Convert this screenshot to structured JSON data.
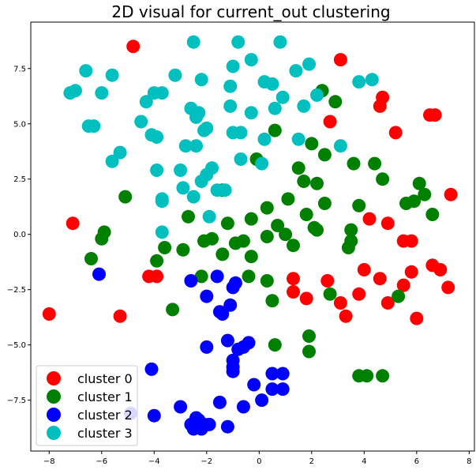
{
  "chart_data": {
    "type": "scatter",
    "title": "2D visual for current_out clustering",
    "xlabel": "",
    "ylabel": "",
    "xlim": [
      -8.7,
      8.2
    ],
    "ylim": [
      -9.8,
      9.6
    ],
    "xticks": [
      -8,
      -6,
      -4,
      -2,
      0,
      2,
      4,
      6,
      8
    ],
    "yticks": [
      -7.5,
      -5.0,
      -2.5,
      0.0,
      2.5,
      5.0,
      7.5
    ],
    "xtick_labels": [
      "−8",
      "−6",
      "−4",
      "−2",
      "0",
      "2",
      "4",
      "6",
      "8"
    ],
    "ytick_labels": [
      "−7.5",
      "−5.0",
      "−2.5",
      "0.0",
      "2.5",
      "5.0",
      "7.5"
    ],
    "grid": false,
    "legend_position": "lower-left",
    "series": [
      {
        "name": "cluster 0",
        "color": "#ff0000",
        "points": [
          [
            -4.8,
            8.5
          ],
          [
            3.1,
            7.9
          ],
          [
            4.7,
            6.2
          ],
          [
            4.6,
            5.8
          ],
          [
            2.7,
            5.1
          ],
          [
            5.2,
            4.6
          ],
          [
            6.5,
            5.4
          ],
          [
            6.7,
            5.4
          ],
          [
            7.3,
            1.8
          ],
          [
            -7.1,
            0.5
          ],
          [
            4.2,
            0.7
          ],
          [
            4.9,
            0.5
          ],
          [
            5.5,
            -0.3
          ],
          [
            5.8,
            -0.3
          ],
          [
            -4.2,
            -1.9
          ],
          [
            -3.9,
            -1.9
          ],
          [
            4.0,
            -1.6
          ],
          [
            4.6,
            -2.0
          ],
          [
            5.8,
            -1.7
          ],
          [
            6.6,
            -1.4
          ],
          [
            6.9,
            -1.6
          ],
          [
            2.6,
            -2.1
          ],
          [
            1.3,
            -2.0
          ],
          [
            5.5,
            -2.3
          ],
          [
            7.2,
            -2.4
          ],
          [
            1.3,
            -2.6
          ],
          [
            1.8,
            -2.9
          ],
          [
            3.8,
            -2.7
          ],
          [
            3.1,
            -3.1
          ],
          [
            4.9,
            -3.1
          ],
          [
            3.3,
            -3.7
          ],
          [
            6.0,
            -3.8
          ],
          [
            -8.0,
            -3.6
          ],
          [
            -5.3,
            -3.7
          ]
        ]
      },
      {
        "name": "cluster 1",
        "color": "#008000",
        "points": [
          [
            2.4,
            6.5
          ],
          [
            2.9,
            6.0
          ],
          [
            0.6,
            4.7
          ],
          [
            2.0,
            4.1
          ],
          [
            2.5,
            3.6
          ],
          [
            -0.1,
            3.4
          ],
          [
            3.6,
            3.2
          ],
          [
            4.4,
            3.2
          ],
          [
            1.5,
            3.0
          ],
          [
            4.7,
            2.5
          ],
          [
            1.7,
            2.4
          ],
          [
            2.2,
            2.3
          ],
          [
            -5.1,
            1.7
          ],
          [
            -1.4,
            2.0
          ],
          [
            1.1,
            1.6
          ],
          [
            2.5,
            1.4
          ],
          [
            3.8,
            1.3
          ],
          [
            5.6,
            1.4
          ],
          [
            5.9,
            1.5
          ],
          [
            6.3,
            1.8
          ],
          [
            6.1,
            2.3
          ],
          [
            0.3,
            1.2
          ],
          [
            6.6,
            0.9
          ],
          [
            -2.7,
            0.8
          ],
          [
            -1.2,
            0.5
          ],
          [
            -0.3,
            0.7
          ],
          [
            1.8,
            0.9
          ],
          [
            0.7,
            0.4
          ],
          [
            2.1,
            0.3
          ],
          [
            2.2,
            0.2
          ],
          [
            3.5,
            0.2
          ],
          [
            -5.9,
            0.1
          ],
          [
            -6.0,
            -0.2
          ],
          [
            -2.1,
            -0.3
          ],
          [
            -1.8,
            -0.2
          ],
          [
            -0.9,
            -0.4
          ],
          [
            -0.6,
            -0.3
          ],
          [
            0.3,
            -0.1
          ],
          [
            1.0,
            0.0
          ],
          [
            3.5,
            -0.3
          ],
          [
            -3.6,
            -0.6
          ],
          [
            -2.9,
            -0.7
          ],
          [
            1.3,
            -0.5
          ],
          [
            3.4,
            -0.6
          ],
          [
            -6.4,
            -1.1
          ],
          [
            -3.9,
            -1.2
          ],
          [
            -1.4,
            -0.9
          ],
          [
            -0.3,
            -1.0
          ],
          [
            -2.2,
            -1.9
          ],
          [
            -0.4,
            -1.9
          ],
          [
            0.3,
            -2.1
          ],
          [
            2.7,
            -2.7
          ],
          [
            5.3,
            -2.8
          ],
          [
            0.5,
            -3.0
          ],
          [
            -3.3,
            -3.4
          ],
          [
            1.9,
            -4.6
          ],
          [
            0.6,
            -5.0
          ],
          [
            1.9,
            -5.3
          ],
          [
            3.8,
            -6.4
          ],
          [
            4.1,
            -6.4
          ],
          [
            4.7,
            -6.4
          ]
        ]
      },
      {
        "name": "cluster 2",
        "color": "#0000ff",
        "points": [
          [
            -6.1,
            -1.8
          ],
          [
            -1.6,
            -1.9
          ],
          [
            -2.6,
            -2.1
          ],
          [
            -0.9,
            -2.2
          ],
          [
            -1.0,
            -2.4
          ],
          [
            -2.0,
            -2.8
          ],
          [
            -1.1,
            -3.2
          ],
          [
            -1.5,
            -3.5
          ],
          [
            -1.4,
            -3.6
          ],
          [
            -1.2,
            -4.8
          ],
          [
            -2.0,
            -5.1
          ],
          [
            -0.8,
            -5.2
          ],
          [
            -0.6,
            -5.1
          ],
          [
            -0.4,
            -4.9
          ],
          [
            -1.0,
            -5.7
          ],
          [
            -1.0,
            -6.0
          ],
          [
            -1.0,
            -6.2
          ],
          [
            0.5,
            -6.3
          ],
          [
            0.9,
            -6.3
          ],
          [
            -4.1,
            -6.1
          ],
          [
            -0.2,
            -6.8
          ],
          [
            0.5,
            -7.0
          ],
          [
            0.9,
            -7.0
          ],
          [
            -0.6,
            -7.8
          ],
          [
            0.1,
            -7.5
          ],
          [
            -1.5,
            -7.6
          ],
          [
            -3.0,
            -7.8
          ],
          [
            -4.9,
            -8.1
          ],
          [
            -4.0,
            -8.2
          ],
          [
            -2.4,
            -8.3
          ],
          [
            -2.6,
            -8.6
          ],
          [
            -2.3,
            -8.4
          ],
          [
            -2.1,
            -8.6
          ],
          [
            -1.9,
            -8.6
          ],
          [
            -2.5,
            -8.8
          ],
          [
            -2.2,
            -8.8
          ],
          [
            -1.2,
            -8.7
          ]
        ]
      },
      {
        "name": "cluster 3",
        "color": "#00bfbf",
        "points": [
          [
            -2.5,
            8.7
          ],
          [
            -0.8,
            8.7
          ],
          [
            0.8,
            8.7
          ],
          [
            -0.3,
            7.9
          ],
          [
            -1.0,
            7.6
          ],
          [
            -6.6,
            7.4
          ],
          [
            -5.6,
            7.2
          ],
          [
            -3.2,
            7.2
          ],
          [
            -2.2,
            7.0
          ],
          [
            1.4,
            7.4
          ],
          [
            1.9,
            7.7
          ],
          [
            0.2,
            6.9
          ],
          [
            0.5,
            6.8
          ],
          [
            3.8,
            6.9
          ],
          [
            4.3,
            7.0
          ],
          [
            -7.2,
            6.4
          ],
          [
            -7.0,
            6.5
          ],
          [
            -6.0,
            6.4
          ],
          [
            -4.0,
            6.4
          ],
          [
            -3.7,
            6.4
          ],
          [
            -1.1,
            6.7
          ],
          [
            0.9,
            6.2
          ],
          [
            2.2,
            6.3
          ],
          [
            -4.3,
            6.0
          ],
          [
            -2.6,
            5.7
          ],
          [
            -2.3,
            5.5
          ],
          [
            -1.1,
            5.8
          ],
          [
            0.6,
            5.7
          ],
          [
            1.7,
            5.8
          ],
          [
            -0.3,
            5.5
          ],
          [
            -2.4,
            5.3
          ],
          [
            -6.5,
            4.9
          ],
          [
            -6.3,
            4.9
          ],
          [
            -4.5,
            5.1
          ],
          [
            -2.1,
            4.7
          ],
          [
            -2.0,
            4.8
          ],
          [
            -1.0,
            4.6
          ],
          [
            -0.7,
            4.6
          ],
          [
            -4.1,
            4.5
          ],
          [
            -3.9,
            4.4
          ],
          [
            0.2,
            4.3
          ],
          [
            1.5,
            4.3
          ],
          [
            -2.8,
            4.0
          ],
          [
            -2.4,
            4.0
          ],
          [
            3.1,
            4.0
          ],
          [
            -5.3,
            3.7
          ],
          [
            -5.6,
            3.3
          ],
          [
            -0.7,
            3.4
          ],
          [
            -3.9,
            2.9
          ],
          [
            -3.0,
            2.9
          ],
          [
            -1.8,
            3.0
          ],
          [
            -2.0,
            2.7
          ],
          [
            -2.2,
            2.4
          ],
          [
            -2.9,
            2.1
          ],
          [
            -2.5,
            1.7
          ],
          [
            -1.6,
            2.0
          ],
          [
            -1.3,
            2.0
          ],
          [
            0.1,
            3.2
          ],
          [
            -3.7,
            1.6
          ],
          [
            -3.7,
            1.5
          ],
          [
            -1.9,
            0.8
          ],
          [
            -3.7,
            0.1
          ]
        ]
      }
    ],
    "legend": {
      "entries": [
        {
          "label": "cluster 0",
          "color": "#ff0000"
        },
        {
          "label": "cluster 1",
          "color": "#008000"
        },
        {
          "label": "cluster 2",
          "color": "#0000ff"
        },
        {
          "label": "cluster 3",
          "color": "#00bfbf"
        }
      ]
    }
  }
}
